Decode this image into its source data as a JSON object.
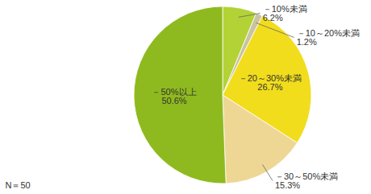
{
  "chart_data": {
    "type": "pie",
    "categories": [
      "－10%未満",
      "－10～20%未満",
      "－20～30%未満",
      "－30～50%未満",
      "－50%以上"
    ],
    "values": [
      6.2,
      1.2,
      26.7,
      15.3,
      50.6
    ],
    "value_labels": [
      "6.2%",
      "1.2%",
      "26.7%",
      "15.3%",
      "50.6%"
    ],
    "colors": [
      "#b3d235",
      "#c9c3a4",
      "#f1dd1c",
      "#eed795",
      "#8fba1f"
    ],
    "data_labels": true,
    "caption": "N＝50"
  }
}
